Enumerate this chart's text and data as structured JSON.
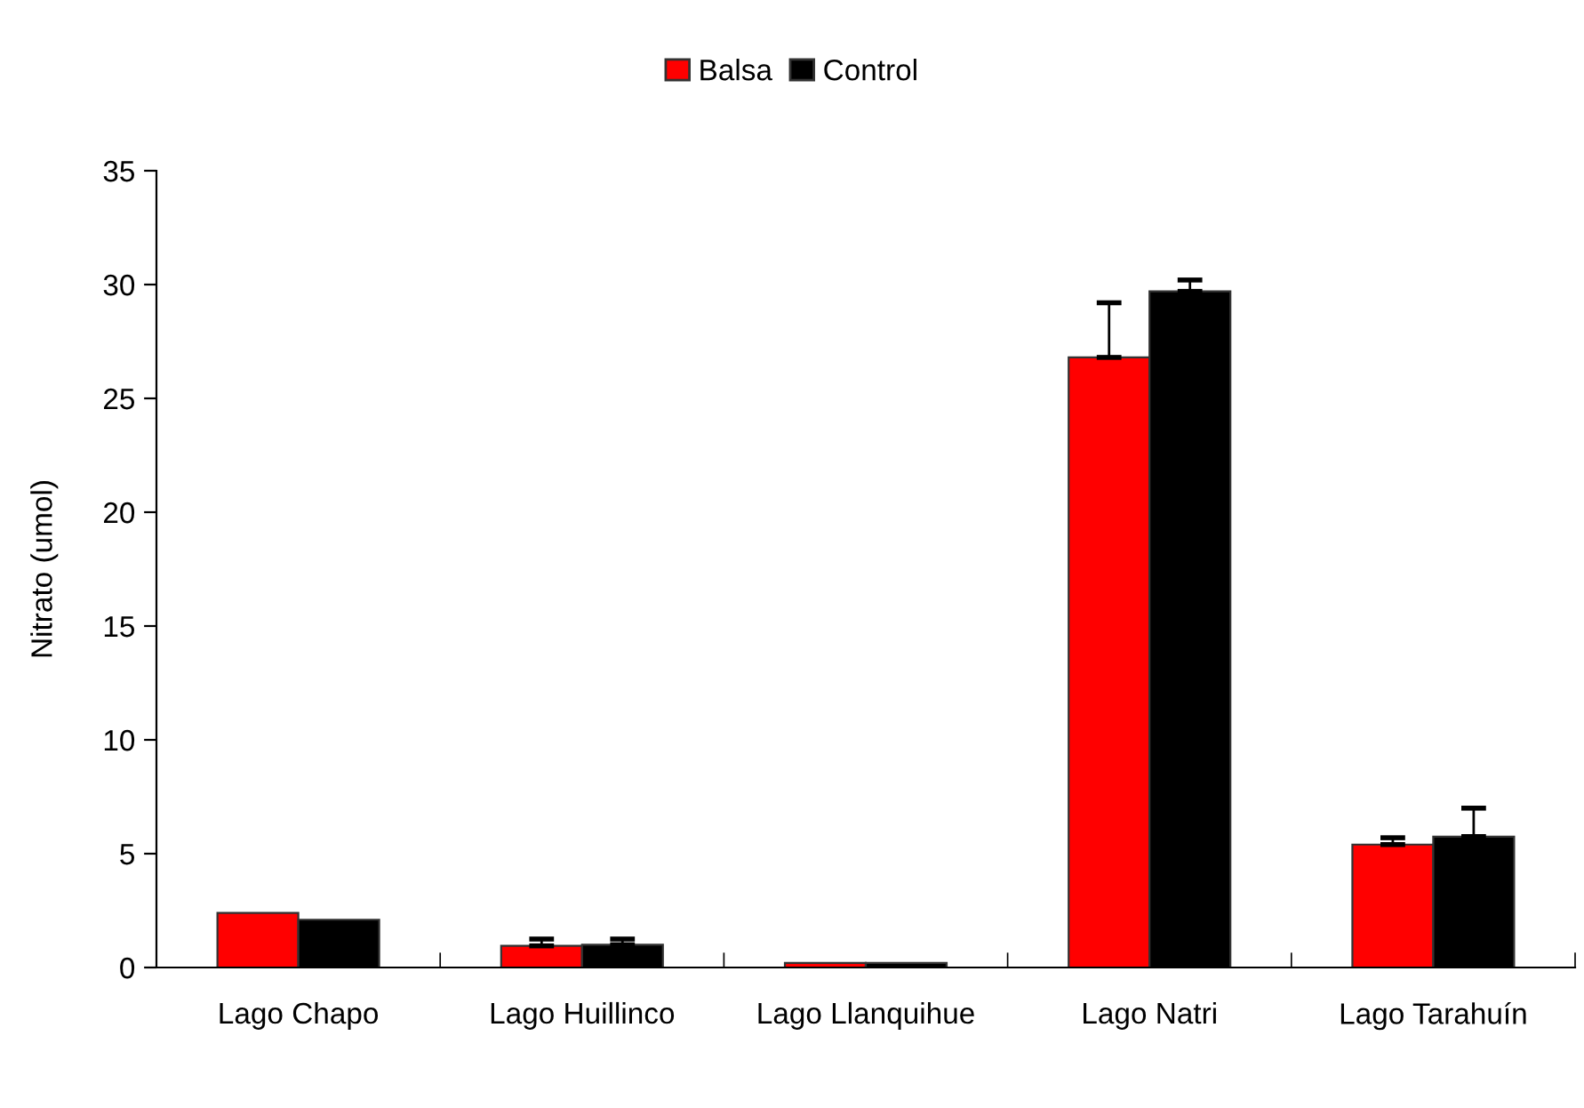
{
  "chart_data": {
    "type": "bar",
    "ylabel": "Nitrato (umol)",
    "categories": [
      "Lago Chapo",
      "Lago Huillinco",
      "Lago Llanquihue",
      "Lago Natri",
      "Lago Tarahuín"
    ],
    "series": [
      {
        "name": "Balsa",
        "color": "#ff0000",
        "values": [
          2.4,
          0.95,
          0.2,
          26.8,
          5.4
        ],
        "errors": [
          null,
          [
            0.95,
            1.25
          ],
          null,
          [
            26.8,
            29.2
          ],
          [
            5.4,
            5.7
          ]
        ]
      },
      {
        "name": "Control",
        "color": "#000000",
        "values": [
          2.1,
          1.0,
          0.2,
          29.7,
          5.75
        ],
        "errors": [
          null,
          [
            1.0,
            1.25
          ],
          null,
          [
            29.7,
            30.2
          ],
          [
            5.75,
            7.0
          ]
        ]
      }
    ],
    "ylim": [
      0,
      35
    ],
    "yticks": [
      0,
      5,
      10,
      15,
      20,
      25,
      30,
      35
    ],
    "grid": false,
    "legend": "top"
  }
}
